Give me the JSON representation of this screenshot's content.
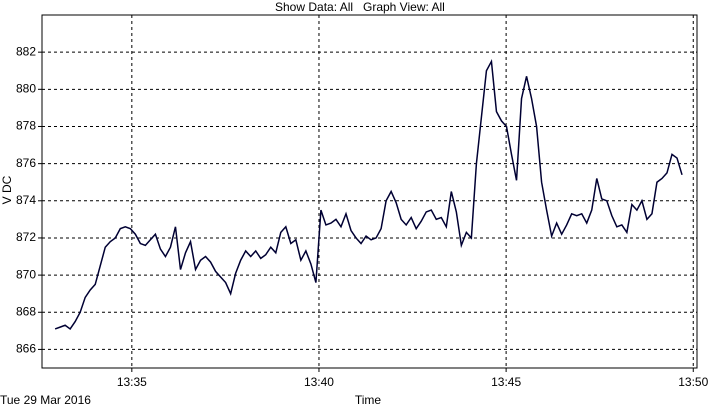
{
  "header": {
    "show_data": "Show Data: All",
    "graph_view": "Graph View: All"
  },
  "chart_data": {
    "type": "line",
    "xlabel": "Time",
    "ylabel": "V DC",
    "date": "Tue 29 Mar 2016",
    "xlim": [
      812.6,
      830.1
    ],
    "ylim": [
      865,
      884
    ],
    "xticks": [
      {
        "value": 815,
        "label": "13:35"
      },
      {
        "value": 820,
        "label": "13:40"
      },
      {
        "value": 825,
        "label": "13:45"
      },
      {
        "value": 830,
        "label": "13:50"
      }
    ],
    "yticks": [
      866,
      868,
      870,
      872,
      874,
      876,
      878,
      880,
      882
    ],
    "grid": true,
    "x": [
      812.95,
      813.084,
      813.218,
      813.352,
      813.486,
      813.62,
      813.754,
      813.888,
      814.022,
      814.156,
      814.29,
      814.424,
      814.558,
      814.692,
      814.826,
      814.96,
      815.094,
      815.228,
      815.362,
      815.496,
      815.63,
      815.764,
      815.898,
      816.032,
      816.166,
      816.3,
      816.434,
      816.568,
      816.702,
      816.836,
      816.97,
      817.104,
      817.238,
      817.372,
      817.506,
      817.64,
      817.774,
      817.908,
      818.042,
      818.176,
      818.31,
      818.444,
      818.578,
      818.712,
      818.846,
      818.98,
      819.114,
      819.248,
      819.382,
      819.516,
      819.65,
      819.784,
      819.918,
      820.052,
      820.186,
      820.32,
      820.454,
      820.588,
      820.722,
      820.856,
      820.99,
      821.124,
      821.258,
      821.392,
      821.526,
      821.66,
      821.794,
      821.928,
      822.062,
      822.196,
      822.33,
      822.464,
      822.598,
      822.732,
      822.866,
      823.0,
      823.134,
      823.268,
      823.402,
      823.536,
      823.67,
      823.804,
      823.938,
      824.072,
      824.206,
      824.34,
      824.474,
      824.608,
      824.742,
      824.876,
      825.01,
      825.144,
      825.278,
      825.412,
      825.546,
      825.68,
      825.814,
      825.948,
      826.082,
      826.216,
      826.35,
      826.484,
      826.618,
      826.752,
      826.886,
      827.02,
      827.154,
      827.288,
      827.422,
      827.556,
      827.69,
      827.824,
      827.958,
      828.092,
      828.226,
      828.36,
      828.494,
      828.628,
      828.762,
      828.896,
      829.03,
      829.164,
      829.298,
      829.432,
      829.566,
      829.7
    ],
    "series": [
      {
        "color": "#000033",
        "values": [
          867.1,
          867.2,
          867.3,
          867.1,
          867.5,
          868.0,
          868.8,
          869.2,
          869.5,
          870.5,
          871.5,
          871.8,
          872.0,
          872.5,
          872.6,
          872.5,
          872.2,
          871.7,
          871.6,
          871.9,
          872.2,
          871.4,
          871.0,
          871.5,
          872.6,
          870.3,
          871.2,
          871.8,
          870.3,
          870.8,
          871.0,
          870.7,
          870.2,
          869.9,
          869.6,
          869.0,
          870.1,
          870.8,
          871.3,
          871.0,
          871.3,
          870.9,
          871.1,
          871.5,
          871.2,
          872.3,
          872.6,
          871.7,
          871.9,
          870.8,
          871.3,
          870.6,
          869.6,
          873.5,
          872.7,
          872.8,
          873.0,
          872.6,
          873.3,
          872.4,
          872.0,
          871.7,
          872.1,
          871.9,
          872.0,
          872.5,
          874.0,
          874.5,
          873.9,
          873.0,
          872.7,
          873.1,
          872.5,
          872.9,
          873.4,
          873.5,
          873.0,
          873.1,
          872.6,
          874.5,
          873.4,
          871.6,
          872.3,
          872.0,
          876.0,
          878.5,
          881.0,
          881.5,
          878.8,
          878.3,
          878.0,
          876.5,
          875.1,
          879.5,
          880.7,
          879.5,
          878.0,
          875.0,
          873.5,
          872.1,
          872.8,
          872.2,
          872.7,
          873.3,
          873.2,
          873.3,
          872.8,
          873.5,
          875.2,
          874.1,
          874.0,
          873.2,
          872.6,
          872.7,
          872.3,
          873.8,
          873.5,
          874.0,
          873.0,
          873.3,
          875.0,
          875.2,
          875.5,
          876.5,
          876.3,
          875.4
        ]
      }
    ]
  }
}
